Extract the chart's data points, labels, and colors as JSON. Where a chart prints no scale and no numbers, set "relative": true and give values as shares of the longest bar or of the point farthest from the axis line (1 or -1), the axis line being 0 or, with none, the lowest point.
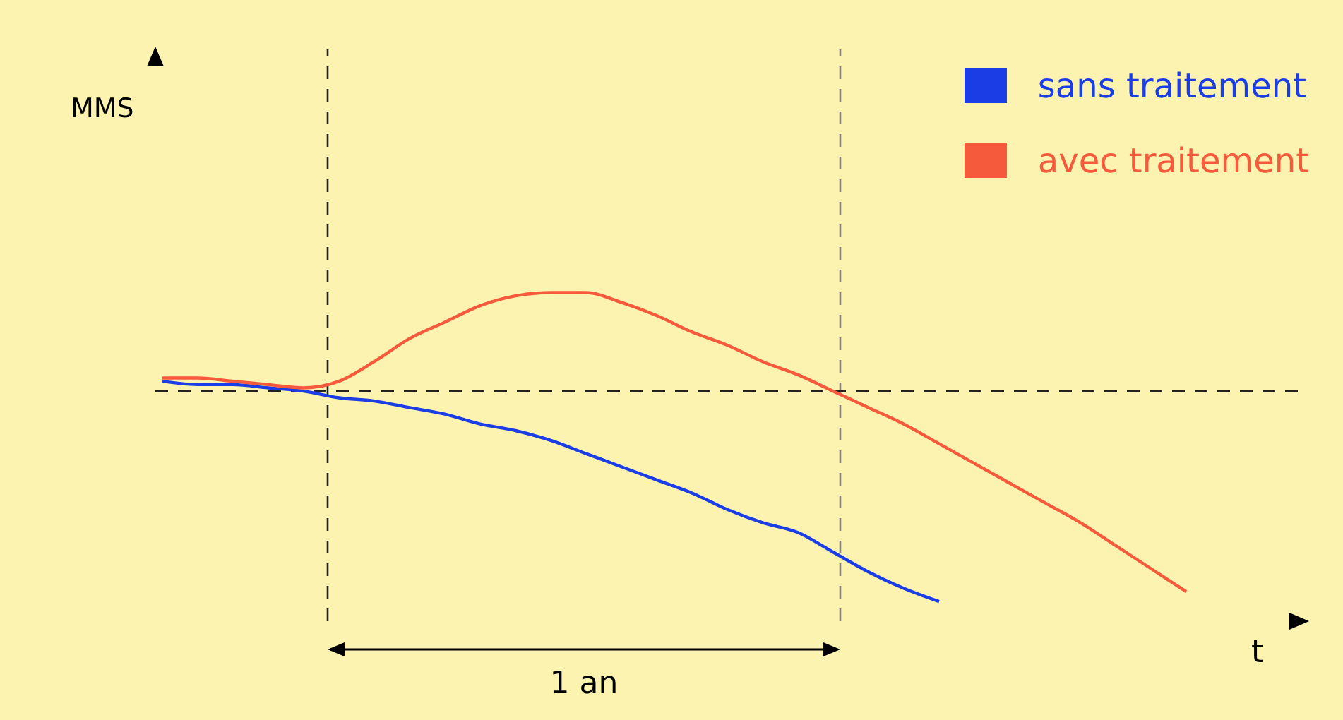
{
  "chart_data": {
    "type": "line",
    "relative": true,
    "xlabel": "t",
    "categories": [
      null,
      null,
      null,
      null,
      null,
      null,
      null,
      null,
      null,
      null,
      null,
      null,
      null,
      null,
      null,
      null,
      null,
      null,
      null,
      null,
      null,
      null,
      null,
      null,
      null,
      null,
      null,
      null,
      null,
      null
    ],
    "series": [
      {
        "name": "sans traitement",
        "color": "#1a3de6",
        "values": [
          0.73,
          0.72,
          0.72,
          0.71,
          0.7,
          0.68,
          0.67,
          0.65,
          0.63,
          0.6,
          0.58,
          0.55,
          0.51,
          0.47,
          0.43,
          0.39,
          0.34,
          0.3,
          0.27,
          0.21,
          0.15,
          0.1,
          0.06,
          null,
          null,
          null,
          null,
          null,
          null,
          null
        ]
      },
      {
        "name": "avec traitement",
        "color": "#f55a3c",
        "values": [
          0.74,
          0.74,
          0.73,
          0.72,
          0.71,
          0.73,
          0.79,
          0.86,
          0.91,
          0.96,
          0.99,
          1,
          1,
          0.97,
          0.93,
          0.88,
          0.84,
          0.79,
          0.75,
          0.7,
          0.65,
          0.6,
          0.54,
          0.48,
          0.42,
          0.36,
          0.3,
          0.23,
          0.16,
          0.09
        ]
      }
    ],
    "ref_lines": [
      {
        "axis": "y",
        "value": 0.7,
        "color": "#222222",
        "line_style": "dashed"
      }
    ],
    "annotations": [
      "MMS",
      "1 an"
    ],
    "legend": "top right",
    "marker": "none",
    "line_style": "solid"
  }
}
